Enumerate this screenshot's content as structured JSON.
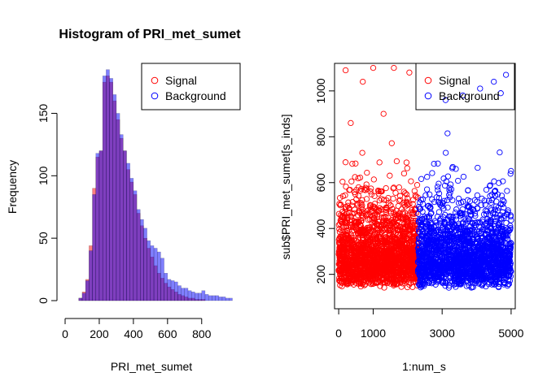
{
  "chart_data": [
    {
      "type": "bar",
      "subtype": "overlaid-histogram",
      "title": "Histogram of PRI_met_sumet",
      "xlabel": "PRI_met_sumet",
      "ylabel": "Frequency",
      "xlim": [
        0,
        1030
      ],
      "ylim": [
        0,
        190
      ],
      "xticks": [
        0,
        200,
        400,
        600,
        800
      ],
      "xtick_labels": [
        "0",
        "200",
        "400",
        "600",
        "800"
      ],
      "yticks": [
        0,
        50,
        100,
        150
      ],
      "ytick_labels": [
        "0",
        "50",
        "100",
        "150"
      ],
      "bin_width": 20,
      "bin_start": 80,
      "legend_position": "top-right",
      "series": [
        {
          "name": "Signal",
          "color": "#FF0000",
          "values": [
            2,
            7,
            17,
            44,
            90,
            115,
            120,
            175,
            180,
            175,
            160,
            145,
            130,
            120,
            105,
            95,
            85,
            70,
            60,
            50,
            42,
            35,
            28,
            22,
            18,
            14,
            11,
            9,
            7,
            5,
            4,
            3,
            2,
            2,
            1,
            1,
            1,
            0,
            0,
            0,
            0,
            0,
            0,
            0,
            0
          ]
        },
        {
          "name": "Background",
          "color": "#0000FF",
          "values": [
            2,
            6,
            16,
            40,
            85,
            118,
            120,
            180,
            185,
            178,
            165,
            150,
            133,
            120,
            110,
            98,
            88,
            73,
            65,
            58,
            48,
            44,
            42,
            39,
            34,
            22,
            17,
            16,
            15,
            12,
            10,
            10,
            8,
            7,
            6,
            6,
            8,
            5,
            4,
            4,
            4,
            3,
            3,
            2,
            2
          ]
        }
      ]
    },
    {
      "type": "scatter",
      "xlabel": "1:num_s",
      "ylabel": "sub$PRI_met_sumet[s_inds]",
      "xlim": [
        -120,
        5120
      ],
      "ylim": [
        50,
        1120
      ],
      "xticks": [
        0,
        1000,
        3000,
        5000
      ],
      "xtick_labels": [
        "0",
        "1000",
        "3000",
        "5000"
      ],
      "yticks": [
        200,
        400,
        600,
        800,
        1000
      ],
      "ytick_labels": [
        "200",
        "400",
        "600",
        "800",
        "1000"
      ],
      "legend_position": "top-right",
      "series": [
        {
          "name": "Signal",
          "color": "#FF0000",
          "x_range": [
            0,
            2300
          ],
          "n_points": 2000,
          "highlighted_points": [
            [
              200,
              1090
            ],
            [
              1000,
              1100
            ],
            [
              1600,
              1100
            ],
            [
              2050,
              1080
            ],
            [
              700,
              1040
            ],
            [
              1300,
              900
            ],
            [
              350,
              860
            ]
          ]
        },
        {
          "name": "Background",
          "color": "#0000FF",
          "x_range": [
            2300,
            5000
          ],
          "n_points": 2000,
          "highlighted_points": [
            [
              4850,
              1070
            ],
            [
              4500,
              1040
            ],
            [
              4100,
              1010
            ],
            [
              3600,
              980
            ],
            [
              3100,
              960
            ],
            [
              4700,
              990
            ]
          ]
        }
      ]
    }
  ]
}
